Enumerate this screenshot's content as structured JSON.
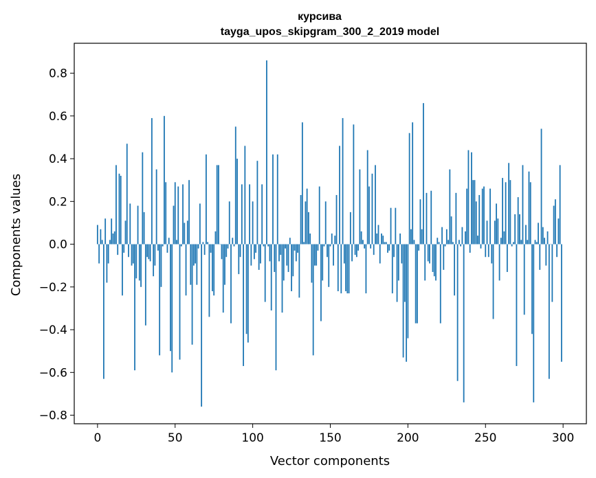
{
  "chart_data": {
    "type": "bar",
    "title": "курсива",
    "subtitle": "tayga_upos_skipgram_300_2_2019 model",
    "xlabel": "Vector components",
    "ylabel": "Components values",
    "xlim": [
      -15,
      315
    ],
    "ylim": [
      -0.84,
      0.94
    ],
    "xticks": [
      0,
      50,
      100,
      150,
      200,
      250,
      300
    ],
    "xtick_labels": [
      "0",
      "50",
      "100",
      "150",
      "200",
      "250",
      "300"
    ],
    "yticks": [
      -0.8,
      -0.6,
      -0.4,
      -0.2,
      0.0,
      0.2,
      0.4,
      0.6,
      0.8
    ],
    "ytick_labels": [
      "−0.8",
      "−0.6",
      "−0.4",
      "−0.2",
      "0.0",
      "0.2",
      "0.4",
      "0.6",
      "0.8"
    ],
    "bar_color": "#1f77b4",
    "x": [
      0,
      1,
      2,
      3,
      4,
      5,
      6,
      7,
      8,
      9,
      10,
      11,
      12,
      13,
      14,
      15,
      16,
      17,
      18,
      19,
      20,
      21,
      22,
      23,
      24,
      25,
      26,
      27,
      28,
      29,
      30,
      31,
      32,
      33,
      34,
      35,
      36,
      37,
      38,
      39,
      40,
      41,
      42,
      43,
      44,
      45,
      46,
      47,
      48,
      49,
      50,
      51,
      52,
      53,
      54,
      55,
      56,
      57,
      58,
      59,
      60,
      61,
      62,
      63,
      64,
      65,
      66,
      67,
      68,
      69,
      70,
      71,
      72,
      73,
      74,
      75,
      76,
      77,
      78,
      79,
      80,
      81,
      82,
      83,
      84,
      85,
      86,
      87,
      88,
      89,
      90,
      91,
      92,
      93,
      94,
      95,
      96,
      97,
      98,
      99,
      100,
      101,
      102,
      103,
      104,
      105,
      106,
      107,
      108,
      109,
      110,
      111,
      112,
      113,
      114,
      115,
      116,
      117,
      118,
      119,
      120,
      121,
      122,
      123,
      124,
      125,
      126,
      127,
      128,
      129,
      130,
      131,
      132,
      133,
      134,
      135,
      136,
      137,
      138,
      139,
      140,
      141,
      142,
      143,
      144,
      145,
      146,
      147,
      148,
      149,
      150,
      151,
      152,
      153,
      154,
      155,
      156,
      157,
      158,
      159,
      160,
      161,
      162,
      163,
      164,
      165,
      166,
      167,
      168,
      169,
      170,
      171,
      172,
      173,
      174,
      175,
      176,
      177,
      178,
      179,
      180,
      181,
      182,
      183,
      184,
      185,
      186,
      187,
      188,
      189,
      190,
      191,
      192,
      193,
      194,
      195,
      196,
      197,
      198,
      199,
      200,
      201,
      202,
      203,
      204,
      205,
      206,
      207,
      208,
      209,
      210,
      211,
      212,
      213,
      214,
      215,
      216,
      217,
      218,
      219,
      220,
      221,
      222,
      223,
      224,
      225,
      226,
      227,
      228,
      229,
      230,
      231,
      232,
      233,
      234,
      235,
      236,
      237,
      238,
      239,
      240,
      241,
      242,
      243,
      244,
      245,
      246,
      247,
      248,
      249,
      250,
      251,
      252,
      253,
      254,
      255,
      256,
      257,
      258,
      259,
      260,
      261,
      262,
      263,
      264,
      265,
      266,
      267,
      268,
      269,
      270,
      271,
      272,
      273,
      274,
      275,
      276,
      277,
      278,
      279,
      280,
      281,
      282,
      283,
      284,
      285,
      286,
      287,
      288,
      289,
      290,
      291,
      292,
      293,
      294,
      295,
      296,
      297,
      298,
      299
    ],
    "values": [
      0.09,
      -0.09,
      0.07,
      0.02,
      -0.63,
      0.12,
      -0.18,
      -0.09,
      0.02,
      0.12,
      0.05,
      0.06,
      0.37,
      -0.05,
      0.33,
      0.32,
      -0.24,
      -0.04,
      0.11,
      0.47,
      -0.06,
      0.19,
      -0.1,
      -0.09,
      -0.59,
      -0.16,
      0.18,
      -0.17,
      -0.2,
      0.43,
      0.15,
      -0.38,
      -0.06,
      -0.07,
      -0.08,
      0.59,
      -0.15,
      -0.1,
      0.35,
      -0.03,
      -0.52,
      -0.2,
      -0.01,
      0.6,
      0.29,
      -0.04,
      0.03,
      -0.5,
      -0.6,
      0.18,
      0.29,
      0.02,
      0.27,
      -0.54,
      -0.01,
      0.28,
      0.1,
      -0.24,
      0.11,
      0.3,
      -0.19,
      -0.47,
      -0.1,
      -0.09,
      -0.19,
      -0.02,
      0.19,
      -0.76,
      0.01,
      -0.05,
      0.42,
      0.01,
      -0.34,
      -0.04,
      -0.22,
      -0.24,
      0.06,
      0.37,
      0.37,
      0.0,
      -0.07,
      -0.32,
      -0.19,
      -0.06,
      -0.02,
      0.2,
      -0.37,
      0.03,
      -0.01,
      0.55,
      0.4,
      -0.14,
      -0.06,
      0.28,
      -0.57,
      0.46,
      -0.42,
      -0.46,
      0.28,
      -0.1,
      0.2,
      -0.07,
      -0.04,
      0.39,
      -0.12,
      -0.09,
      0.28,
      -0.01,
      -0.27,
      0.86,
      -0.01,
      -0.08,
      -0.31,
      0.42,
      -0.13,
      -0.59,
      0.42,
      -0.08,
      -0.05,
      -0.32,
      -0.17,
      -0.02,
      -0.1,
      -0.13,
      0.03,
      -0.22,
      -0.15,
      -0.03,
      -0.08,
      -0.04,
      -0.25,
      0.23,
      0.57,
      0.01,
      0.2,
      0.26,
      0.15,
      0.05,
      -0.18,
      -0.52,
      -0.1,
      -0.1,
      -0.03,
      0.27,
      -0.36,
      -0.17,
      -0.01,
      0.2,
      -0.06,
      -0.2,
      -0.01,
      0.05,
      -0.1,
      0.04,
      0.23,
      -0.22,
      0.46,
      -0.23,
      0.59,
      -0.09,
      -0.22,
      -0.23,
      -0.23,
      0.15,
      -0.08,
      0.56,
      -0.05,
      -0.06,
      -0.03,
      0.35,
      0.06,
      0.02,
      -0.02,
      -0.23,
      0.44,
      0.27,
      -0.02,
      0.33,
      -0.05,
      0.37,
      0.05,
      0.09,
      -0.09,
      0.05,
      0.04,
      0.01,
      0.01,
      -0.04,
      -0.03,
      0.17,
      -0.23,
      -0.06,
      0.17,
      -0.27,
      -0.17,
      0.05,
      -0.09,
      -0.53,
      -0.27,
      -0.55,
      -0.44,
      0.52,
      0.07,
      0.57,
      0.02,
      -0.37,
      -0.37,
      -0.03,
      0.21,
      0.07,
      0.66,
      -0.17,
      0.24,
      -0.08,
      -0.09,
      0.25,
      -0.13,
      -0.15,
      -0.17,
      0.03,
      0.01,
      -0.37,
      0.08,
      -0.12,
      -0.01,
      0.07,
      0.02,
      0.35,
      0.13,
      0.01,
      -0.24,
      0.24,
      -0.64,
      0.02,
      -0.01,
      0.08,
      -0.74,
      0.06,
      0.26,
      0.44,
      -0.04,
      0.43,
      0.3,
      0.3,
      0.2,
      0.04,
      0.23,
      -0.02,
      0.26,
      0.27,
      -0.06,
      0.11,
      -0.06,
      0.26,
      -0.09,
      -0.35,
      0.11,
      0.19,
      0.12,
      -0.17,
      0.03,
      0.31,
      0.06,
      0.29,
      -0.13,
      0.38,
      0.3,
      -0.01,
      0.01,
      0.14,
      -0.57,
      0.22,
      0.14,
      0.02,
      0.37,
      -0.33,
      0.09,
      0.02,
      0.34,
      0.29,
      -0.42,
      -0.74,
      0.02,
      0.01,
      0.1,
      -0.12,
      0.54,
      0.08,
      0.03,
      -0.1,
      0.06,
      -0.63,
      0.0,
      -0.27,
      0.18,
      0.21,
      -0.06,
      0.12,
      0.37,
      -0.55
    ],
    "grid": false
  }
}
